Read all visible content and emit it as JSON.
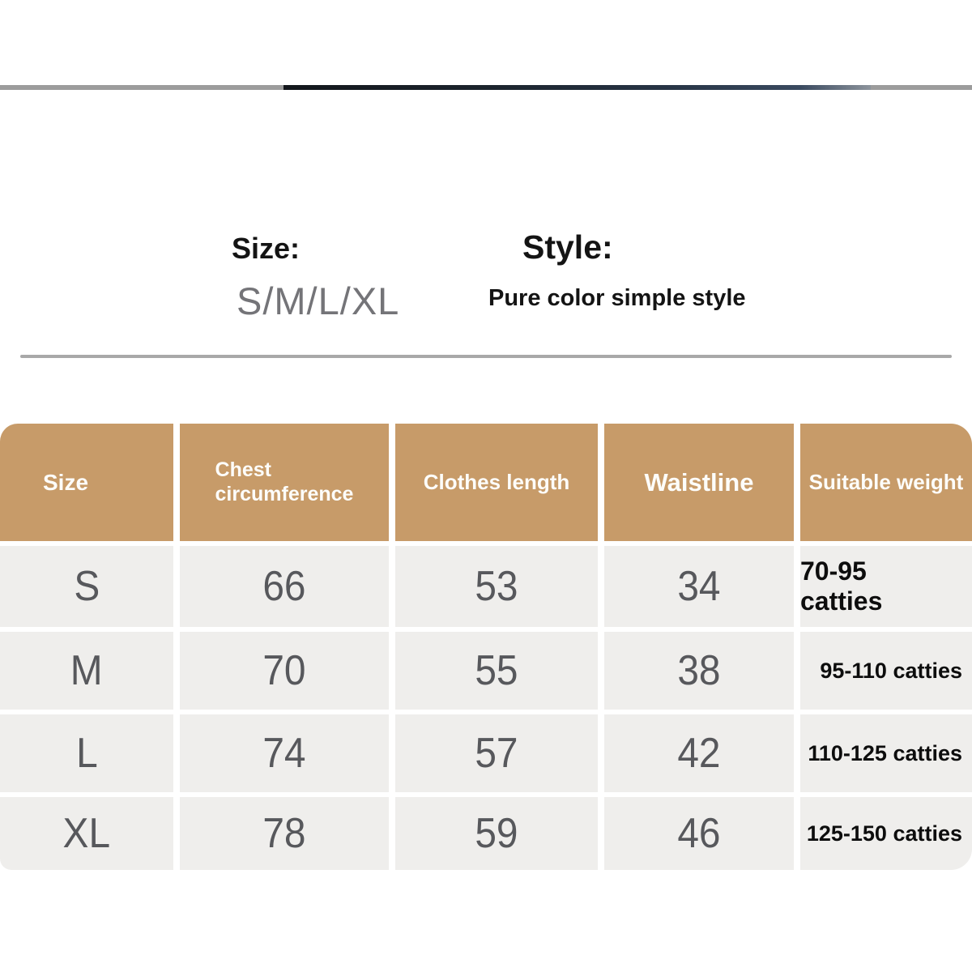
{
  "info": {
    "size_label": "Size:",
    "size_value": "S/M/L/XL",
    "style_label": "Style:",
    "style_value": "Pure color simple style"
  },
  "table": {
    "headers": [
      "Size",
      "Chest\ncircumference",
      "Clothes length",
      "Waistline",
      "Suitable weight"
    ],
    "rows": [
      {
        "size": "S",
        "chest": "66",
        "length": "53",
        "waist": "34",
        "weight": "70-95 catties"
      },
      {
        "size": "M",
        "chest": "70",
        "length": "55",
        "waist": "38",
        "weight": "95-110 catties"
      },
      {
        "size": "L",
        "chest": "74",
        "length": "57",
        "waist": "42",
        "weight": "110-125 catties"
      },
      {
        "size": "XL",
        "chest": "78",
        "length": "59",
        "waist": "46",
        "weight": "125-150 catties"
      }
    ]
  },
  "chart_data": {
    "type": "table",
    "title": "Garment size chart",
    "columns": [
      "Size",
      "Chest circumference",
      "Clothes length",
      "Waistline",
      "Suitable weight"
    ],
    "rows": [
      [
        "S",
        66,
        53,
        34,
        "70-95 catties"
      ],
      [
        "M",
        70,
        55,
        38,
        "95-110 catties"
      ],
      [
        "L",
        74,
        57,
        42,
        "110-125 catties"
      ],
      [
        "XL",
        78,
        59,
        46,
        "125-150 catties"
      ]
    ]
  },
  "colors": {
    "header_bg": "#c79b69",
    "header_text": "#fdfdfa",
    "cell_bg": "#efeeec",
    "value_text": "#57585c",
    "weight_text": "#0d0d0d",
    "divider": "#a8a8a8",
    "photo_strip_gray": "#9c9c9c",
    "photo_strip_dark": "#1c242d"
  }
}
